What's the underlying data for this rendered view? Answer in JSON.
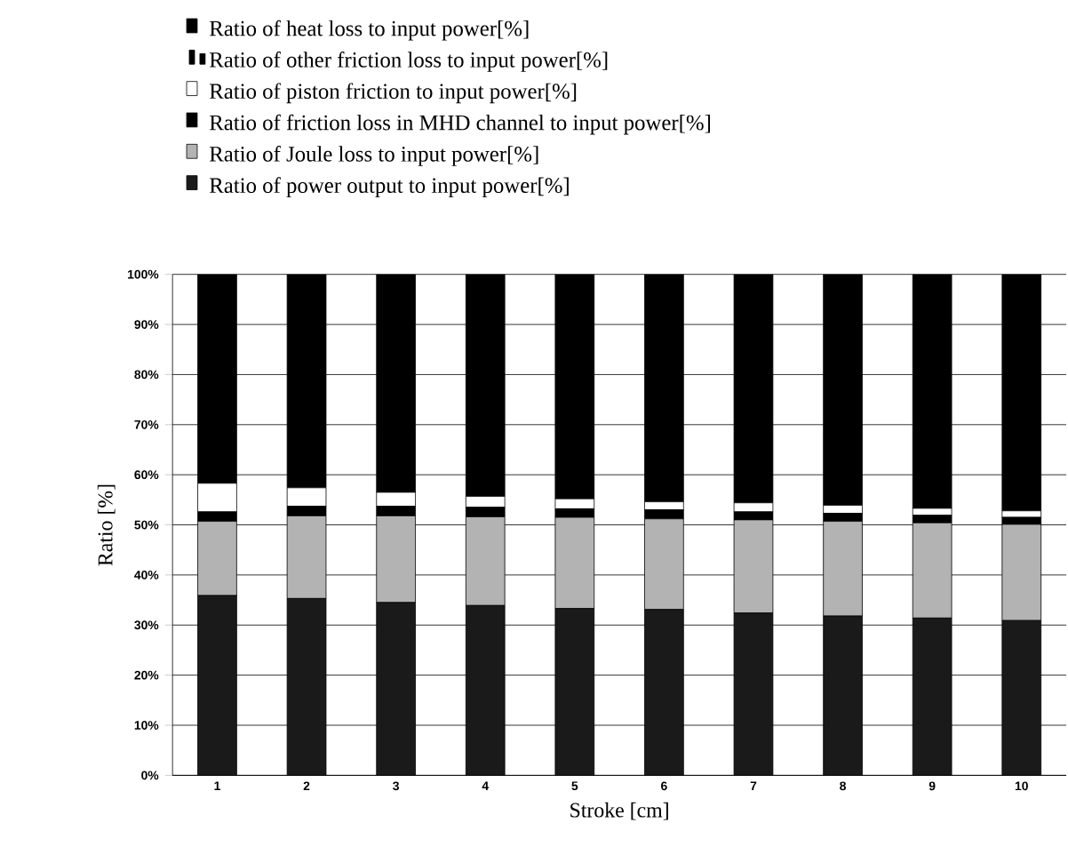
{
  "chart_data": {
    "type": "bar",
    "stacked": true,
    "xlabel": "Stroke [cm]",
    "ylabel": "Ratio [%]",
    "categories": [
      "1",
      "2",
      "3",
      "4",
      "5",
      "6",
      "7",
      "8",
      "9",
      "10"
    ],
    "ylim": [
      0,
      100
    ],
    "yticks": [
      {
        "value": 0,
        "label": "0%"
      },
      {
        "value": 10,
        "label": "10%"
      },
      {
        "value": 20,
        "label": "20%"
      },
      {
        "value": 30,
        "label": "30%"
      },
      {
        "value": 40,
        "label": "40%"
      },
      {
        "value": 50,
        "label": "50%"
      },
      {
        "value": 60,
        "label": "60%"
      },
      {
        "value": 70,
        "label": "70%"
      },
      {
        "value": 80,
        "label": "80%"
      },
      {
        "value": 90,
        "label": "90%"
      },
      {
        "value": 100,
        "label": "100%"
      }
    ],
    "grid": "y",
    "legend": "top",
    "series": [
      {
        "name": "Ratio of power output to input power[%]",
        "color": "#1a1a1a",
        "values": [
          35.9,
          35.3,
          34.5,
          33.9,
          33.3,
          33.1,
          32.4,
          31.8,
          31.4,
          30.9
        ]
      },
      {
        "name": "Ratio of Joule loss to input power[%]",
        "color": "#b3b3b3",
        "values": [
          14.8,
          16.5,
          17.3,
          17.7,
          18.2,
          18.1,
          18.6,
          18.9,
          19.0,
          19.2
        ]
      },
      {
        "name": "Ratio of friction loss in MHD channel to input power[%]",
        "color": "#000000",
        "values": [
          1.9,
          1.9,
          1.9,
          1.9,
          1.7,
          1.8,
          1.6,
          1.6,
          1.5,
          1.4
        ]
      },
      {
        "name": "Ratio of piston friction to input power[%]",
        "color": "#ffffff",
        "values": [
          5.7,
          3.7,
          2.8,
          2.2,
          2.0,
          1.6,
          1.8,
          1.6,
          1.4,
          1.3
        ]
      },
      {
        "name": "Ratio of other friction loss to input power[%]",
        "color": "#000000",
        "values": [
          null,
          null,
          null,
          null,
          null,
          null,
          null,
          null,
          null,
          null
        ]
      },
      {
        "name": "Ratio of heat loss  to input power[%]",
        "color": "#000000",
        "values": [
          41.7,
          42.6,
          43.5,
          44.3,
          44.8,
          45.4,
          45.6,
          46.1,
          46.7,
          47.2
        ]
      }
    ]
  }
}
